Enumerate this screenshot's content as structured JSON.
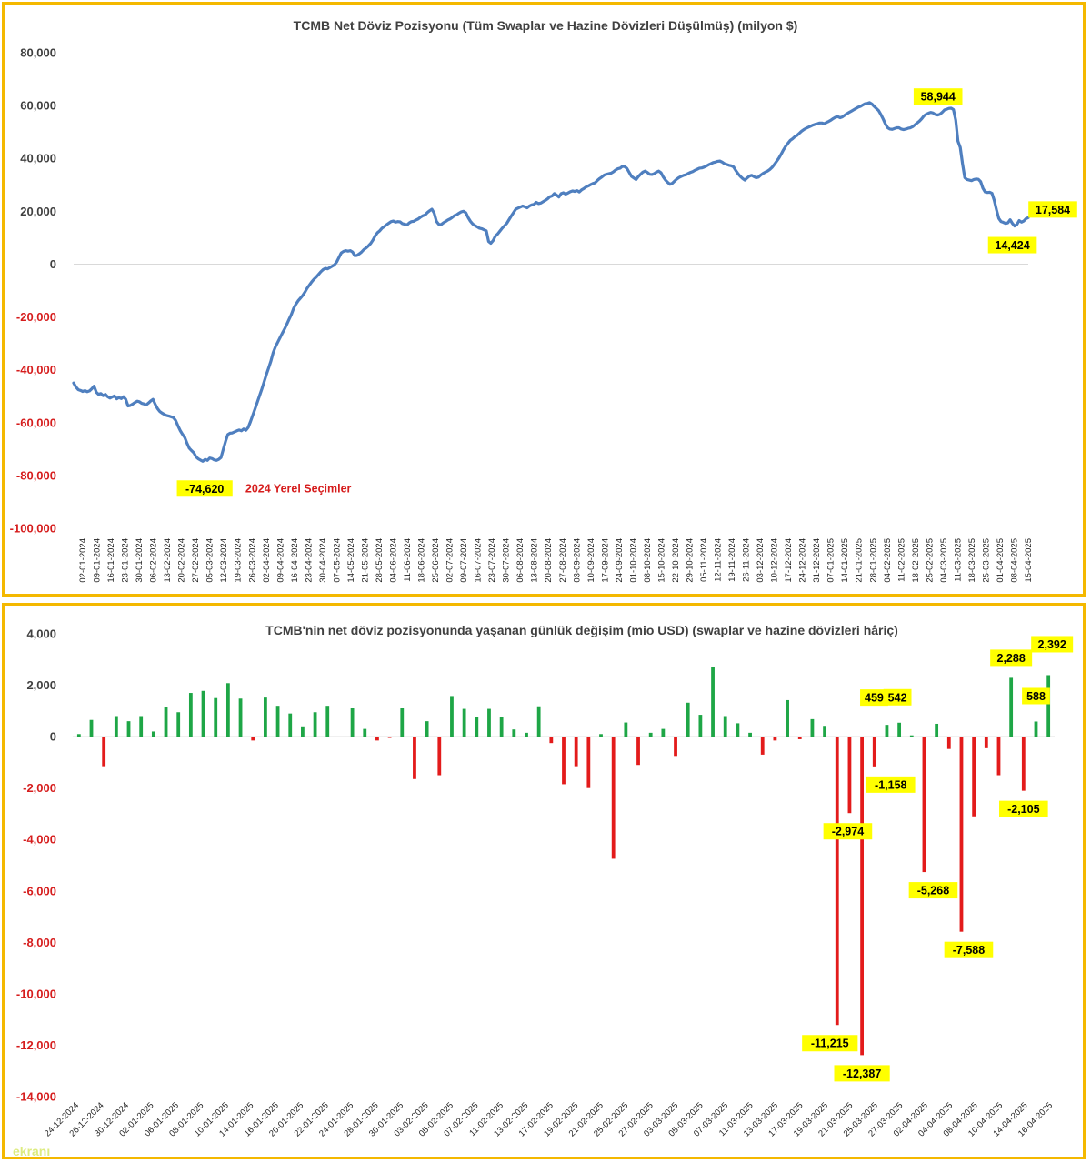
{
  "watermark": "ekranı",
  "chart_data": [
    {
      "type": "line",
      "title": "TCMB Net Döviz Pozisyonu (Tüm Swaplar ve Hazine Dövizleri Düşülmüş) (milyon $)",
      "ylim": [
        -100000,
        80000
      ],
      "yticks": [
        80000,
        60000,
        40000,
        20000,
        0,
        -20000,
        -40000,
        -60000,
        -80000,
        -100000
      ],
      "ytick_labels": [
        "80,000",
        "60,000",
        "40,000",
        "20,000",
        "0",
        "-20,000",
        "-40,000",
        "-60,000",
        "-80,000",
        "-100,000"
      ],
      "xtick_labels": [
        "02-01-2024",
        "09-01-2024",
        "16-01-2024",
        "23-01-2024",
        "30-01-2024",
        "06-02-2024",
        "13-02-2024",
        "20-02-2024",
        "27-02-2024",
        "05-03-2024",
        "12-03-2024",
        "19-03-2024",
        "26-03-2024",
        "02-04-2024",
        "09-04-2024",
        "16-04-2024",
        "23-04-2024",
        "30-04-2024",
        "07-05-2024",
        "14-05-2024",
        "21-05-2024",
        "28-05-2024",
        "04-06-2024",
        "11-06-2024",
        "18-06-2024",
        "25-06-2024",
        "02-07-2024",
        "09-07-2024",
        "16-07-2024",
        "23-07-2024",
        "30-07-2024",
        "06-08-2024",
        "13-08-2024",
        "20-08-2024",
        "27-08-2024",
        "03-09-2024",
        "10-09-2024",
        "17-09-2024",
        "24-09-2024",
        "01-10-2024",
        "08-10-2024",
        "15-10-2024",
        "22-10-2024",
        "29-10-2024",
        "05-11-2024",
        "12-11-2024",
        "19-11-2024",
        "26-11-2024",
        "03-12-2024",
        "10-12-2024",
        "17-12-2024",
        "24-12-2024",
        "31-12-2024",
        "07-01-2025",
        "14-01-2025",
        "21-01-2025",
        "28-01-2025",
        "04-02-2025",
        "11-02-2025",
        "18-02-2025",
        "25-02-2025",
        "04-03-2025",
        "11-03-2025",
        "18-03-2025",
        "25-03-2025",
        "01-04-2025",
        "08-04-2025",
        "15-04-2025"
      ],
      "series": [
        {
          "color": "#4f7fbf",
          "values": [
            -45000,
            -46500,
            -47500,
            -47800,
            -48200,
            -47900,
            -48300,
            -48000,
            -47200,
            -46200,
            -48500,
            -49300,
            -49000,
            -49800,
            -49300,
            -50200,
            -50700,
            -50300,
            -49900,
            -51000,
            -50500,
            -50900,
            -50200,
            -51200,
            -53700,
            -53500,
            -53000,
            -52400,
            -51900,
            -52100,
            -52700,
            -52900,
            -53300,
            -52600,
            -51800,
            -51200,
            -53100,
            -54700,
            -55800,
            -56400,
            -56900,
            -57300,
            -57500,
            -57800,
            -58100,
            -59200,
            -61200,
            -63000,
            -64400,
            -65600,
            -67800,
            -69700,
            -70600,
            -71400,
            -73000,
            -73700,
            -74200,
            -74620,
            -73900,
            -74300,
            -73400,
            -73600,
            -74100,
            -74300,
            -73900,
            -73200,
            -70100,
            -67100,
            -64500,
            -64000,
            -63900,
            -63500,
            -63100,
            -62800,
            -63100,
            -62400,
            -62900,
            -61800,
            -59600,
            -57200,
            -54800,
            -52300,
            -49800,
            -47300,
            -44600,
            -41800,
            -39300,
            -36700,
            -33500,
            -31300,
            -29600,
            -27900,
            -26200,
            -24600,
            -22800,
            -20900,
            -19100,
            -16800,
            -15200,
            -13900,
            -12900,
            -11900,
            -10600,
            -9100,
            -7900,
            -6700,
            -5700,
            -4900,
            -3900,
            -2900,
            -2100,
            -1600,
            -1800,
            -1300,
            -800,
            -300,
            800,
            2500,
            4200,
            4800,
            5100,
            4900,
            5100,
            4600,
            3200,
            3300,
            3900,
            4600,
            5500,
            6100,
            6900,
            7800,
            9100,
            10700,
            11900,
            12600,
            13600,
            14200,
            14900,
            15500,
            16100,
            16300,
            15900,
            16100,
            16000,
            15300,
            15100,
            14800,
            15600,
            16100,
            16200,
            16700,
            17100,
            17800,
            18300,
            18600,
            19500,
            20200,
            20800,
            19300,
            16200,
            15100,
            14900,
            15600,
            16100,
            16700,
            17100,
            17700,
            18400,
            18700,
            19300,
            19800,
            20000,
            19400,
            17600,
            16200,
            15200,
            14600,
            14100,
            13600,
            13400,
            13000,
            12600,
            8600,
            7900,
            8900,
            10600,
            11400,
            12500,
            13600,
            14500,
            15400,
            16800,
            18200,
            19500,
            20800,
            21200,
            21600,
            22000,
            21700,
            21300,
            22000,
            22400,
            22600,
            23400,
            22900,
            23100,
            23600,
            24100,
            24700,
            25500,
            25800,
            26700,
            26100,
            25400,
            26700,
            27000,
            26500,
            26900,
            27400,
            27700,
            27500,
            27800,
            27300,
            28100,
            28600,
            29200,
            29600,
            30100,
            30500,
            30800,
            31700,
            32400,
            33000,
            33700,
            34000,
            34200,
            34400,
            34900,
            35600,
            36100,
            36300,
            37000,
            36900,
            36200,
            34700,
            33200,
            32600,
            32000,
            33100,
            34000,
            34800,
            35200,
            34700,
            34000,
            33900,
            34200,
            34800,
            35200,
            34600,
            33000,
            31800,
            30900,
            30200,
            30600,
            31400,
            32200,
            32800,
            33200,
            33600,
            33800,
            34300,
            34700,
            35000,
            35500,
            35900,
            36300,
            36400,
            36700,
            37100,
            37600,
            38000,
            38400,
            38600,
            38900,
            39000,
            38600,
            38000,
            37700,
            37400,
            37200,
            36800,
            35400,
            34200,
            33200,
            32400,
            31800,
            32600,
            33300,
            33600,
            33100,
            32700,
            32900,
            33700,
            34300,
            34800,
            35200,
            35800,
            36600,
            37700,
            38900,
            40100,
            41600,
            43200,
            44600,
            45700,
            46800,
            47400,
            48200,
            48700,
            49500,
            50300,
            50900,
            51400,
            51800,
            52200,
            52600,
            52900,
            53100,
            53400,
            53400,
            53100,
            53600,
            54000,
            54500,
            55100,
            55600,
            55800,
            55400,
            55700,
            56300,
            56900,
            57400,
            57900,
            58400,
            58900,
            59400,
            59700,
            60200,
            60700,
            60800,
            61100,
            60600,
            59700,
            58900,
            58100,
            56600,
            54900,
            53000,
            51600,
            51100,
            51000,
            51300,
            51600,
            51600,
            51100,
            50900,
            51100,
            51400,
            51600,
            52000,
            52700,
            53400,
            54100,
            55000,
            56100,
            56700,
            57100,
            57400,
            57200,
            56600,
            56400,
            56700,
            57400,
            58300,
            58600,
            58944,
            59000,
            58500,
            54500,
            46500,
            44200,
            38000,
            32700,
            32000,
            31800,
            31600,
            32000,
            32200,
            32100,
            31200,
            28700,
            27300,
            27100,
            27200,
            26800,
            24100,
            20500,
            17300,
            16100,
            15800,
            15400,
            15600,
            16800,
            15400,
            14424,
            15000,
            16500,
            15900,
            16300,
            17200,
            17584
          ]
        }
      ],
      "annotations": [
        {
          "text": "-74,620",
          "x": "26-03-2024",
          "y": -74620
        },
        {
          "text": "2024 Yerel Seçimler",
          "x": "02-04-2024",
          "y": -82000
        },
        {
          "text": "58,944",
          "x": "13-03-2025",
          "y": 58944
        },
        {
          "text": "17,584",
          "x": "16-04-2025",
          "y": 17584
        },
        {
          "text": "14,424",
          "x": "10-04-2025",
          "y": 14424
        }
      ]
    },
    {
      "type": "bar",
      "title": "TCMB'nin net döviz pozisyonunda yaşanan günlük değişim (mio USD) (swaplar ve hazine dövizleri hâriç)",
      "ylim": [
        -14000,
        4000
      ],
      "yticks": [
        4000,
        2000,
        0,
        -2000,
        -4000,
        -6000,
        -8000,
        -10000,
        -12000,
        -14000
      ],
      "ytick_labels": [
        "4,000",
        "2,000",
        "0",
        "-2,000",
        "-4,000",
        "-6,000",
        "-8,000",
        "-10,000",
        "-12,000",
        "-14,000"
      ],
      "positive_color": "#1ea646",
      "negative_color": "#e31b1b",
      "xtick_labels": [
        "24-12-2024",
        "26-12-2024",
        "30-12-2024",
        "02-01-2025",
        "06-01-2025",
        "08-01-2025",
        "10-01-2025",
        "14-01-2025",
        "16-01-2025",
        "20-01-2025",
        "22-01-2025",
        "24-01-2025",
        "28-01-2025",
        "30-01-2025",
        "03-02-2025",
        "05-02-2025",
        "07-02-2025",
        "11-02-2025",
        "13-02-2025",
        "17-02-2025",
        "19-02-2025",
        "21-02-2025",
        "25-02-2025",
        "27-02-2025",
        "03-03-2025",
        "05-03-2025",
        "07-03-2025",
        "11-03-2025",
        "13-03-2025",
        "17-03-2025",
        "19-03-2025",
        "21-03-2025",
        "25-03-2025",
        "27-03-2025",
        "02-04-2025",
        "04-04-2025",
        "08-04-2025",
        "10-04-2025",
        "14-04-2025",
        "16-04-2025"
      ],
      "values": [
        100,
        650,
        -1150,
        800,
        600,
        800,
        200,
        1150,
        950,
        1700,
        1780,
        1500,
        2080,
        1480,
        -150,
        1520,
        1200,
        900,
        400,
        950,
        1200,
        0,
        1100,
        300,
        -150,
        -50,
        1100,
        -1650,
        600,
        -1500,
        1580,
        1080,
        750,
        1080,
        750,
        280,
        150,
        1180,
        -250,
        -1850,
        -1150,
        -2000,
        100,
        -4750,
        550,
        -1100,
        150,
        300,
        -750,
        1320,
        850,
        2720,
        800,
        520,
        150,
        -700,
        -150,
        1420,
        -100,
        680,
        420,
        -11215,
        -2974,
        -12387,
        -1158,
        459,
        542,
        50,
        -5268,
        500,
        -480,
        -7588,
        -3100,
        -450,
        -1500,
        2288,
        -2105,
        588,
        2392
      ],
      "annotations": [
        {
          "text": "459",
          "index": 65
        },
        {
          "text": "542",
          "index": 66
        },
        {
          "text": "-1,158",
          "index": 64
        },
        {
          "text": "-2,974",
          "index": 62
        },
        {
          "text": "-5,268",
          "index": 68
        },
        {
          "text": "-7,588",
          "index": 71
        },
        {
          "text": "-11,215",
          "index": 61
        },
        {
          "text": "-12,387",
          "index": 63
        },
        {
          "text": "2,288",
          "index": 75
        },
        {
          "text": "588",
          "index": 77
        },
        {
          "text": "2,392",
          "index": 78
        },
        {
          "text": "-2,105",
          "index": 76
        }
      ]
    }
  ]
}
